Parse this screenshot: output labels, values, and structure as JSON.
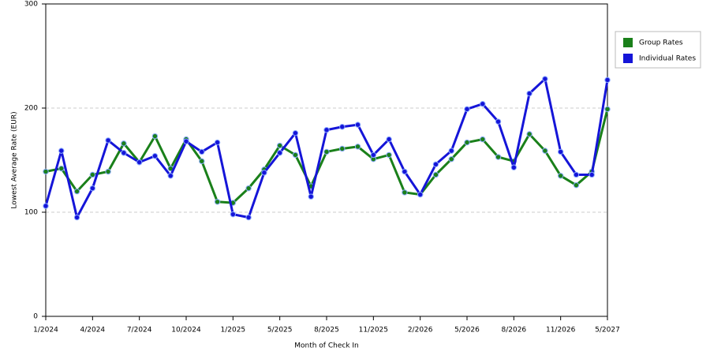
{
  "chart_data": {
    "type": "line",
    "x_label": "Month of Check In",
    "y_label": "Lowest Average Rate (EUR)",
    "categories": [
      "1/2024",
      null,
      null,
      "4/2024",
      null,
      null,
      "7/2024",
      null,
      null,
      "10/2024",
      null,
      null,
      "1/2025",
      null,
      null,
      "5/2025",
      null,
      null,
      "8/2025",
      null,
      null,
      "11/2025",
      null,
      null,
      "2/2026",
      null,
      null,
      "5/2026",
      null,
      null,
      "8/2026",
      null,
      null,
      "11/2026",
      null,
      null,
      "5/2027"
    ],
    "series": [
      {
        "name": "Group Rates",
        "color": "#1a801a",
        "values": [
          139,
          142,
          120,
          136,
          139,
          166,
          148,
          173,
          142,
          170,
          149,
          110,
          109,
          123,
          141,
          164,
          155,
          125,
          158,
          161,
          163,
          151,
          155,
          119,
          117,
          136,
          151,
          167,
          170,
          153,
          149,
          175,
          159,
          135,
          126,
          139,
          199
        ]
      },
      {
        "name": "Individual Rates",
        "color": "#1515d8",
        "values": [
          106,
          159,
          95,
          123,
          169,
          157,
          148,
          154,
          135,
          168,
          158,
          167,
          98,
          95,
          138,
          157,
          176,
          115,
          179,
          182,
          184,
          155,
          170,
          139,
          117,
          146,
          159,
          199,
          204,
          187,
          143,
          214,
          228,
          158,
          136,
          136,
          227
        ]
      }
    ],
    "ylim": [
      0,
      300
    ],
    "yticks": [
      0,
      100,
      200,
      300
    ],
    "grid": true
  }
}
